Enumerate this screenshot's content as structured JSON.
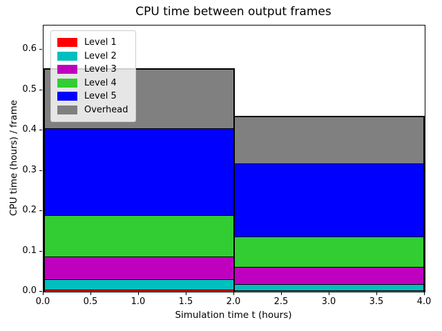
{
  "figure": {
    "title": "CPU time between output frames",
    "xlabel": "Simulation time t (hours)",
    "ylabel": "CPU time (hours) / frame"
  },
  "chart_data": {
    "type": "bar",
    "stacked": true,
    "title": "CPU time between output frames",
    "xlabel": "Simulation time t (hours)",
    "ylabel": "CPU time (hours) / frame",
    "xlim": [
      0.0,
      4.0
    ],
    "ylim": [
      0.0,
      0.66
    ],
    "x_ticks": [
      0.0,
      0.5,
      1.0,
      1.5,
      2.0,
      2.5,
      3.0,
      3.5,
      4.0
    ],
    "y_ticks": [
      0.0,
      0.1,
      0.2,
      0.3,
      0.4,
      0.5,
      0.6
    ],
    "grid": false,
    "legend_position": "upper left",
    "bar_edges_x": [
      0.0,
      2.0,
      4.0
    ],
    "bar_edge_color": "#000000",
    "series": [
      {
        "name": "Level 1",
        "color": "#ff0000",
        "values": [
          0.005,
          0.003
        ]
      },
      {
        "name": "Level 2",
        "color": "#00bfbf",
        "values": [
          0.026,
          0.016
        ]
      },
      {
        "name": "Level 3",
        "color": "#bf00bf",
        "values": [
          0.057,
          0.042
        ]
      },
      {
        "name": "Level 4",
        "color": "#32cd32",
        "values": [
          0.102,
          0.075
        ]
      },
      {
        "name": "Level 5",
        "color": "#0000ff",
        "values": [
          0.215,
          0.182
        ]
      },
      {
        "name": "Overhead",
        "color": "#808080",
        "values": [
          0.148,
          0.116
        ]
      }
    ],
    "bar_totals": [
      0.553,
      0.434
    ]
  }
}
